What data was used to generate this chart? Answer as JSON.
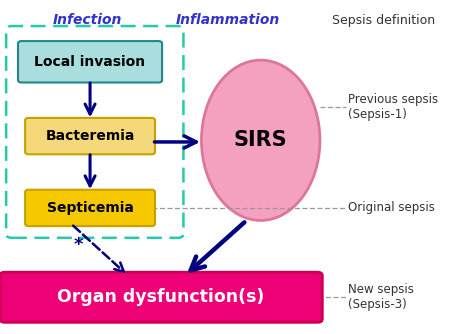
{
  "bg_color": "#ffffff",
  "infection_label": "Infection",
  "infection_label_color": "#3333cc",
  "inflammation_label": "Inflammation",
  "inflammation_label_color": "#3333cc",
  "sepsis_def_label": "Sepsis definition",
  "sepsis_def_color": "#333333",
  "box_local_text": "Local invasion",
  "box_local_facecolor": "#aadddd",
  "box_local_edgecolor": "#228888",
  "box_bact_text": "Bacteremia",
  "box_bact_facecolor": "#f5d87a",
  "box_bact_edgecolor": "#c8a000",
  "box_sept_text": "Septicemia",
  "box_sept_facecolor": "#f5c800",
  "box_sept_edgecolor": "#c8a000",
  "ellipse_facecolor": "#f4a0c0",
  "ellipse_edgecolor": "#dd7799",
  "ellipse_text": "SIRS",
  "organ_text": "Organ dysfunction(s)",
  "organ_facecolor": "#ee0077",
  "organ_edgecolor": "#cc0055",
  "organ_text_color": "#ffffff",
  "arrow_color": "#000080",
  "dashed_line_color": "#999999",
  "infection_border_color": "#22ccaa",
  "prev_sepsis_text": "Previous sepsis\n(Sepsis-1)",
  "orig_sepsis_text": "Original sepsis",
  "new_sepsis_text": "New sepsis\n(Sepsis-3)",
  "annotation_color": "#333333",
  "figsize": [
    4.74,
    3.34
  ],
  "dpi": 100
}
